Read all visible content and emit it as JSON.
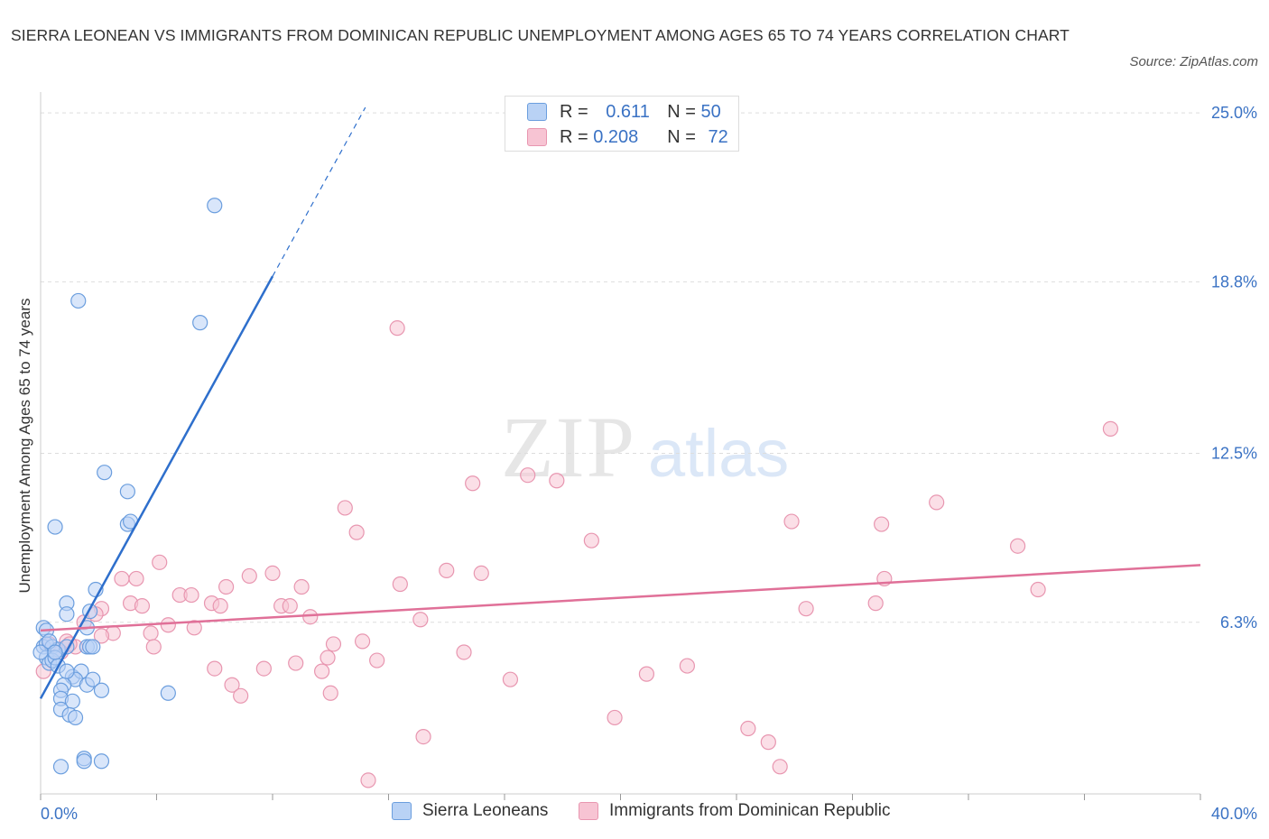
{
  "title": "SIERRA LEONEAN VS IMMIGRANTS FROM DOMINICAN REPUBLIC UNEMPLOYMENT AMONG AGES 65 TO 74 YEARS CORRELATION CHART",
  "source": "Source: ZipAtlas.com",
  "watermark": {
    "zip": "ZIP",
    "atlas": "atlas"
  },
  "legend": {
    "rows": [
      {
        "r_label": "R = ",
        "r_value": "0.611",
        "n_label": "N = ",
        "n_value": "50"
      },
      {
        "r_label": "R = ",
        "r_value": "0.208",
        "n_label": "N = ",
        "n_value": "72"
      }
    ]
  },
  "colors": {
    "blue_fill": "#b9d2f5",
    "blue_stroke": "#6b9ede",
    "blue_line": "#2e6fcc",
    "pink_fill": "#f7c4d3",
    "pink_stroke": "#e896b0",
    "pink_line": "#e07098",
    "grid": "#dddddd",
    "tick_label": "#3a72c4"
  },
  "chart_data": {
    "type": "scatter",
    "title": "SIERRA LEONEAN VS IMMIGRANTS FROM DOMINICAN REPUBLIC UNEMPLOYMENT AMONG AGES 65 TO 74 YEARS CORRELATION CHART",
    "xlabel": "",
    "ylabel": "Unemployment Among Ages 65 to 74 years",
    "xlim": [
      0,
      40
    ],
    "ylim": [
      0,
      25.5
    ],
    "x_tick_labels": [
      {
        "value": 0,
        "label": "0.0%"
      },
      {
        "value": 40,
        "label": "40.0%"
      }
    ],
    "y_tick_labels": [
      {
        "value": 6.3,
        "label": "6.3%"
      },
      {
        "value": 12.5,
        "label": "12.5%"
      },
      {
        "value": 18.8,
        "label": "18.8%"
      },
      {
        "value": 25.0,
        "label": "25.0%"
      }
    ],
    "legend_position": "top-center",
    "series": [
      {
        "name": "Sierra Leoneans",
        "R": 0.611,
        "N": 50,
        "trend": {
          "x0": 0.0,
          "y0": 3.5,
          "x1": 8.0,
          "y1": 19.0,
          "dash_to_x": 11.2
        },
        "points": [
          [
            6.0,
            21.6
          ],
          [
            1.3,
            18.1
          ],
          [
            5.5,
            17.3
          ],
          [
            2.2,
            11.8
          ],
          [
            3.0,
            11.1
          ],
          [
            0.5,
            9.8
          ],
          [
            3.0,
            9.9
          ],
          [
            3.1,
            10.0
          ],
          [
            1.9,
            7.5
          ],
          [
            0.9,
            7.0
          ],
          [
            1.7,
            6.7
          ],
          [
            0.9,
            6.6
          ],
          [
            0.1,
            6.1
          ],
          [
            0.2,
            6.0
          ],
          [
            1.6,
            6.1
          ],
          [
            0.1,
            5.4
          ],
          [
            0.2,
            5.5
          ],
          [
            0.4,
            5.4
          ],
          [
            0.6,
            5.3
          ],
          [
            0.9,
            5.4
          ],
          [
            1.6,
            5.4
          ],
          [
            1.7,
            5.4
          ],
          [
            1.8,
            5.4
          ],
          [
            0.2,
            5.0
          ],
          [
            0.3,
            4.8
          ],
          [
            0.4,
            4.9
          ],
          [
            0.5,
            5.0
          ],
          [
            0.6,
            4.7
          ],
          [
            1.1,
            4.3
          ],
          [
            1.4,
            4.5
          ],
          [
            1.2,
            4.2
          ],
          [
            1.6,
            4.0
          ],
          [
            0.8,
            4.0
          ],
          [
            1.8,
            4.2
          ],
          [
            2.1,
            3.8
          ],
          [
            0.7,
            3.8
          ],
          [
            0.7,
            3.5
          ],
          [
            1.1,
            3.4
          ],
          [
            0.7,
            3.1
          ],
          [
            1.0,
            2.9
          ],
          [
            1.2,
            2.8
          ],
          [
            4.4,
            3.7
          ],
          [
            1.5,
            1.3
          ],
          [
            1.5,
            1.2
          ],
          [
            2.1,
            1.2
          ],
          [
            0.7,
            1.0
          ],
          [
            0.0,
            5.2
          ],
          [
            0.3,
            5.6
          ],
          [
            0.5,
            5.2
          ],
          [
            0.9,
            4.5
          ]
        ]
      },
      {
        "name": "Immigrants from Dominican Republic",
        "R": 0.208,
        "N": 72,
        "trend": {
          "x0": 0.0,
          "y0": 6.0,
          "x1": 40.0,
          "y1": 8.4
        },
        "points": [
          [
            12.3,
            17.1
          ],
          [
            36.9,
            13.4
          ],
          [
            16.8,
            11.7
          ],
          [
            17.8,
            11.5
          ],
          [
            14.9,
            11.4
          ],
          [
            10.5,
            10.5
          ],
          [
            30.9,
            10.7
          ],
          [
            25.9,
            10.0
          ],
          [
            29.0,
            9.9
          ],
          [
            10.9,
            9.6
          ],
          [
            19.0,
            9.3
          ],
          [
            33.7,
            9.1
          ],
          [
            4.1,
            8.5
          ],
          [
            14.0,
            8.2
          ],
          [
            15.2,
            8.1
          ],
          [
            8.0,
            8.1
          ],
          [
            7.2,
            8.0
          ],
          [
            2.8,
            7.9
          ],
          [
            3.3,
            7.9
          ],
          [
            12.4,
            7.7
          ],
          [
            9.0,
            7.6
          ],
          [
            6.4,
            7.6
          ],
          [
            29.1,
            7.9
          ],
          [
            34.4,
            7.5
          ],
          [
            4.8,
            7.3
          ],
          [
            5.2,
            7.3
          ],
          [
            3.1,
            7.0
          ],
          [
            3.5,
            6.9
          ],
          [
            5.9,
            7.0
          ],
          [
            6.2,
            6.9
          ],
          [
            8.3,
            6.9
          ],
          [
            8.6,
            6.9
          ],
          [
            28.8,
            7.0
          ],
          [
            26.4,
            6.8
          ],
          [
            9.3,
            6.5
          ],
          [
            13.1,
            6.4
          ],
          [
            2.1,
            6.8
          ],
          [
            4.4,
            6.2
          ],
          [
            5.3,
            6.1
          ],
          [
            1.5,
            6.3
          ],
          [
            2.5,
            5.9
          ],
          [
            2.1,
            5.8
          ],
          [
            3.8,
            5.9
          ],
          [
            1.9,
            6.6
          ],
          [
            0.9,
            5.6
          ],
          [
            1.2,
            5.4
          ],
          [
            1.0,
            5.5
          ],
          [
            3.9,
            5.4
          ],
          [
            11.1,
            5.6
          ],
          [
            10.1,
            5.5
          ],
          [
            14.6,
            5.2
          ],
          [
            9.9,
            5.0
          ],
          [
            8.8,
            4.8
          ],
          [
            11.6,
            4.9
          ],
          [
            6.0,
            4.6
          ],
          [
            7.7,
            4.6
          ],
          [
            9.7,
            4.5
          ],
          [
            20.9,
            4.4
          ],
          [
            22.3,
            4.7
          ],
          [
            16.2,
            4.2
          ],
          [
            6.6,
            4.0
          ],
          [
            10.0,
            3.7
          ],
          [
            6.9,
            3.6
          ],
          [
            19.8,
            2.8
          ],
          [
            24.4,
            2.4
          ],
          [
            13.2,
            2.1
          ],
          [
            25.1,
            1.9
          ],
          [
            25.5,
            1.0
          ],
          [
            11.3,
            0.5
          ],
          [
            0.1,
            4.5
          ],
          [
            0.3,
            5.5
          ],
          [
            0.7,
            5.2
          ]
        ]
      }
    ]
  },
  "bottom_legend": [
    {
      "label": "Sierra Leoneans"
    },
    {
      "label": "Immigrants from Dominican Republic"
    }
  ]
}
